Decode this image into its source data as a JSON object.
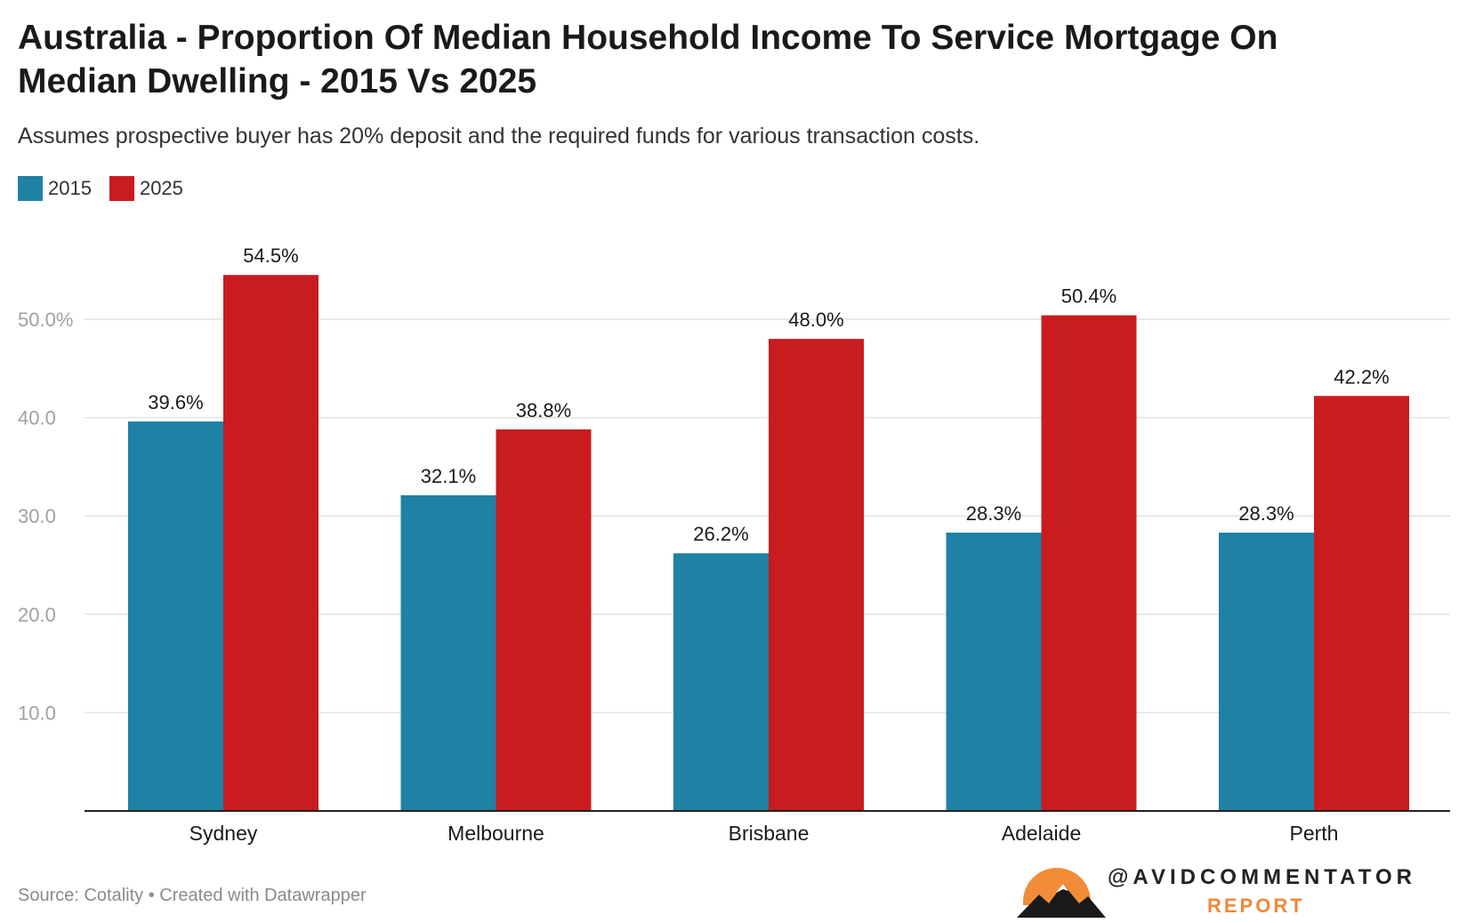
{
  "title": "Australia - Proportion Of Median Household Income To Service Mortgage On Median Dwelling - 2015 Vs 2025",
  "subtitle": "Assumes prospective buyer has 20% deposit and the required funds for various transaction costs.",
  "footer": "Source: Cotality • Created with Datawrapper",
  "brand": {
    "handle": "@AVIDCOMMENTATOR",
    "sub": "REPORT"
  },
  "chart_data": {
    "type": "bar",
    "categories": [
      "Sydney",
      "Melbourne",
      "Brisbane",
      "Adelaide",
      "Perth"
    ],
    "series": [
      {
        "name": "2015",
        "color": "#1f81a3",
        "values": [
          39.6,
          32.1,
          26.2,
          28.3,
          28.3
        ],
        "labels": [
          "39.6%",
          "32.1%",
          "26.2%",
          "28.3%",
          "28.3%"
        ]
      },
      {
        "name": "2025",
        "color": "#c81c1e",
        "values": [
          54.5,
          38.8,
          48.0,
          50.4,
          42.2
        ],
        "labels": [
          "54.5%",
          "38.8%",
          "48.0%",
          "50.4%",
          "42.2%"
        ]
      }
    ],
    "yticks": [
      10,
      20,
      30,
      40,
      50
    ],
    "ytick_labels": [
      "10.0",
      "20.0",
      "30.0",
      "40.0",
      "50.0%"
    ],
    "ylim": [
      0,
      55
    ],
    "legend": "top-left",
    "grid": true
  }
}
